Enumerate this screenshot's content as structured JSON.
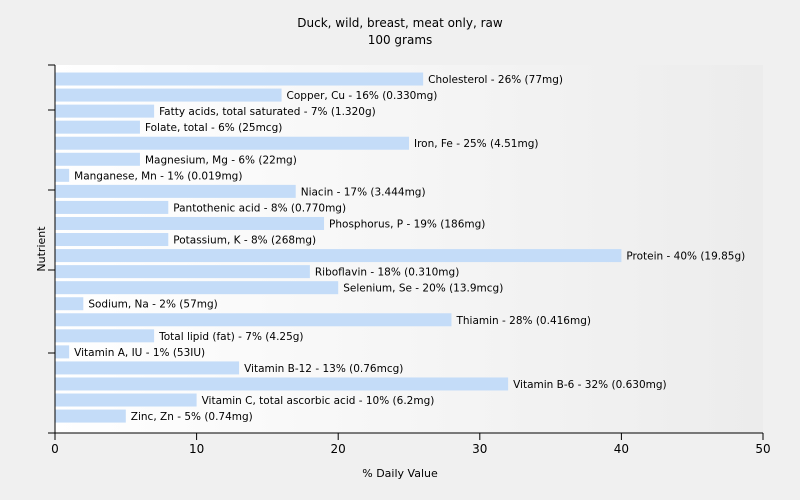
{
  "chart_data": {
    "type": "bar",
    "orientation": "horizontal",
    "title": "Duck, wild, breast, meat only, raw",
    "subtitle": "100 grams",
    "xlabel": "% Daily Value",
    "ylabel": "Nutrient",
    "xlim": [
      0,
      50
    ],
    "xticks": [
      0,
      10,
      20,
      30,
      40,
      50
    ],
    "grid": false,
    "legend": "none",
    "bar_color": "#c4dcf8",
    "categories": [
      "Cholesterol",
      "Copper, Cu",
      "Fatty acids, total saturated",
      "Folate, total",
      "Iron, Fe",
      "Magnesium, Mg",
      "Manganese, Mn",
      "Niacin",
      "Pantothenic acid",
      "Phosphorus, P",
      "Potassium, K",
      "Protein",
      "Riboflavin",
      "Selenium, Se",
      "Sodium, Na",
      "Thiamin",
      "Total lipid (fat)",
      "Vitamin A, IU",
      "Vitamin B-12",
      "Vitamin B-6",
      "Vitamin C, total ascorbic acid",
      "Zinc, Zn"
    ],
    "values": [
      26,
      16,
      7,
      6,
      25,
      6,
      1,
      17,
      8,
      19,
      8,
      40,
      18,
      20,
      2,
      28,
      7,
      1,
      13,
      32,
      10,
      5
    ],
    "labels": [
      "Cholesterol - 26% (77mg)",
      "Copper, Cu - 16% (0.330mg)",
      "Fatty acids, total saturated - 7% (1.320g)",
      "Folate, total - 6% (25mcg)",
      "Iron, Fe - 25% (4.51mg)",
      "Magnesium, Mg - 6% (22mg)",
      "Manganese, Mn - 1% (0.019mg)",
      "Niacin - 17% (3.444mg)",
      "Pantothenic acid - 8% (0.770mg)",
      "Phosphorus, P - 19% (186mg)",
      "Potassium, K - 8% (268mg)",
      "Protein - 40% (19.85g)",
      "Riboflavin - 18% (0.310mg)",
      "Selenium, Se - 20% (13.9mcg)",
      "Sodium, Na - 2% (57mg)",
      "Thiamin - 28% (0.416mg)",
      "Total lipid (fat) - 7% (4.25g)",
      "Vitamin A, IU - 1% (53IU)",
      "Vitamin B-12 - 13% (0.76mcg)",
      "Vitamin B-6 - 32% (0.630mg)",
      "Vitamin C, total ascorbic acid - 10% (6.2mg)",
      "Zinc, Zn - 5% (0.74mg)"
    ]
  }
}
